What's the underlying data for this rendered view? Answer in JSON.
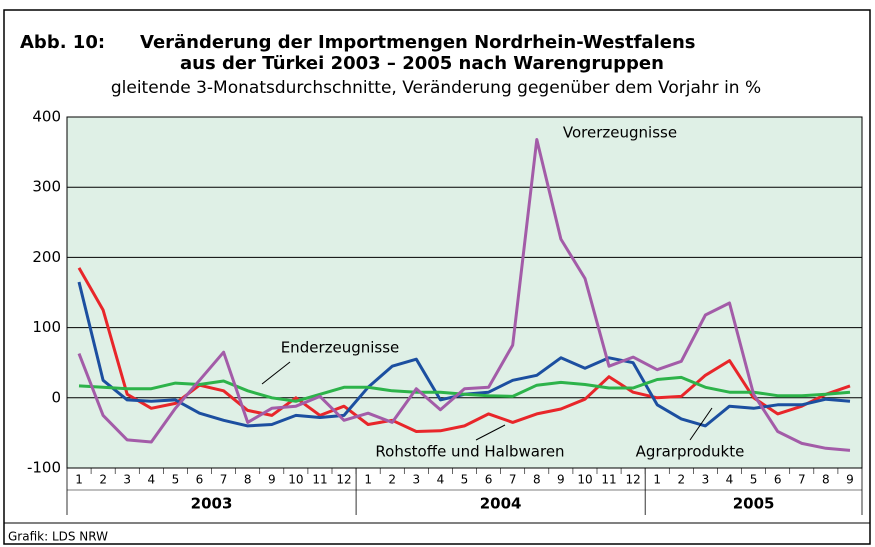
{
  "chart_data": {
    "type": "line",
    "title_label": "Abb. 10:",
    "title": [
      "Veränderung der Importmengen Nordrhein-Westfalens",
      "aus der Türkei 2003 – 2005 nach Warengruppen"
    ],
    "subtitle": "gleitende 3-Monatsdurchschnitte, Veränderung gegenüber dem Vorjahr in %",
    "categories": [
      "1",
      "2",
      "3",
      "4",
      "5",
      "6",
      "7",
      "8",
      "9",
      "10",
      "11",
      "12",
      "1",
      "2",
      "3",
      "4",
      "5",
      "6",
      "7",
      "8",
      "9",
      "10",
      "11",
      "12",
      "1",
      "2",
      "3",
      "4",
      "5",
      "6",
      "7",
      "8",
      "9"
    ],
    "groups": [
      "2003",
      "2004",
      "2005"
    ],
    "ylim": [
      -100,
      400
    ],
    "yticks": [
      -100,
      0,
      100,
      200,
      300,
      400
    ],
    "grid": true,
    "series": [
      {
        "name": "Rohstoffe und Halbwaren",
        "color": "#e8262a",
        "values": [
          185,
          125,
          5,
          -15,
          -8,
          18,
          10,
          -18,
          -25,
          0,
          -25,
          -12,
          -38,
          -32,
          -48,
          -47,
          -40,
          -23,
          -35,
          -23,
          -16,
          -2,
          30,
          8,
          0,
          2,
          32,
          53,
          0,
          -23,
          -12,
          5,
          17
        ]
      },
      {
        "name": "Agrarprodukte",
        "color": "#1c4fa0",
        "values": [
          165,
          25,
          -3,
          -5,
          -3,
          -22,
          -32,
          -40,
          -38,
          -25,
          -28,
          -25,
          15,
          45,
          55,
          -3,
          5,
          8,
          25,
          32,
          57,
          42,
          57,
          50,
          -10,
          -30,
          -40,
          -12,
          -15,
          -10,
          -10,
          -2,
          -5
        ]
      },
      {
        "name": "Enderzeugnisse",
        "color": "#2db34a",
        "values": [
          17,
          15,
          13,
          13,
          21,
          19,
          24,
          10,
          0,
          -5,
          5,
          15,
          15,
          10,
          8,
          8,
          5,
          3,
          2,
          18,
          22,
          19,
          14,
          14,
          26,
          29,
          15,
          8,
          8,
          3,
          3,
          5,
          8
        ]
      },
      {
        "name": "Vorerzeugnisse",
        "color": "#a35ca8",
        "values": [
          63,
          -25,
          -60,
          -63,
          -15,
          25,
          65,
          -35,
          -15,
          -12,
          2,
          -32,
          -22,
          -35,
          13,
          -17,
          13,
          15,
          75,
          368,
          226,
          170,
          45,
          58,
          40,
          52,
          118,
          135,
          5,
          -48,
          -65,
          -72,
          -75
        ]
      }
    ],
    "source": "Grafik: LDS NRW"
  }
}
